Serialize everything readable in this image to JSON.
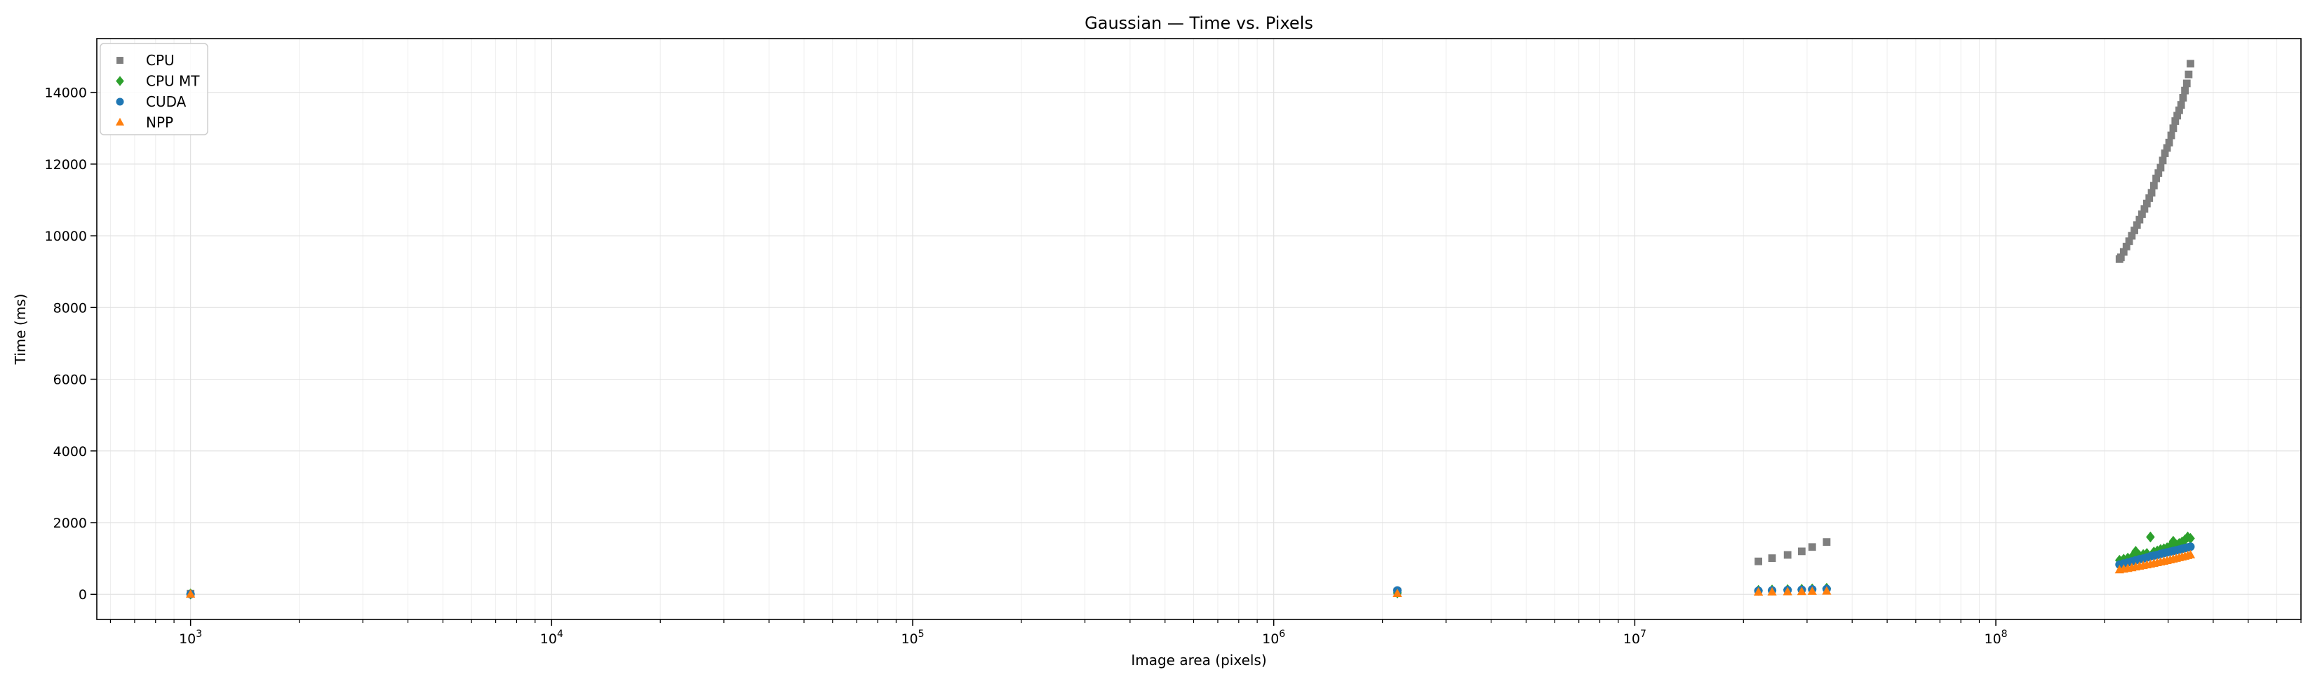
{
  "chart_data": {
    "type": "scatter",
    "title": "Gaussian — Time vs. Pixels",
    "xlabel": "Image area (pixels)",
    "ylabel": "Time (ms)",
    "xscale": "log",
    "xlim": [
      550,
      700000000
    ],
    "ylim": [
      -700,
      15500
    ],
    "grid": true,
    "legend_position": "top-left",
    "x_ticks_major": [
      {
        "value": 1000,
        "base": "10",
        "exp": "3"
      },
      {
        "value": 10000,
        "base": "10",
        "exp": "4"
      },
      {
        "value": 100000,
        "base": "10",
        "exp": "5"
      },
      {
        "value": 1000000,
        "base": "10",
        "exp": "6"
      },
      {
        "value": 10000000,
        "base": "10",
        "exp": "7"
      },
      {
        "value": 100000000,
        "base": "10",
        "exp": "8"
      }
    ],
    "y_ticks": [
      {
        "value": 0,
        "label": "0"
      },
      {
        "value": 2000,
        "label": "2000"
      },
      {
        "value": 4000,
        "label": "4000"
      },
      {
        "value": 6000,
        "label": "6000"
      },
      {
        "value": 8000,
        "label": "8000"
      },
      {
        "value": 10000,
        "label": "10000"
      },
      {
        "value": 12000,
        "label": "12000"
      },
      {
        "value": 14000,
        "label": "14000"
      }
    ],
    "series": [
      {
        "name": "CPU",
        "marker": "square",
        "color": "#7f7f7f",
        "x": [
          1000,
          2200000,
          22000000,
          24000000,
          26500000,
          29000000,
          31000000,
          34000000,
          220000000,
          222000000,
          226000000,
          230000000,
          234000000,
          238000000,
          242000000,
          246000000,
          250000000,
          254000000,
          258000000,
          262000000,
          266000000,
          270000000,
          274000000,
          278000000,
          282000000,
          286000000,
          290000000,
          294000000,
          298000000,
          302000000,
          306000000,
          310000000,
          314000000,
          318000000,
          322000000,
          326000000,
          330000000,
          334000000,
          338000000,
          342000000,
          346000000
        ],
        "y": [
          20,
          80,
          920,
          1010,
          1100,
          1200,
          1320,
          1460,
          9350,
          9400,
          9550,
          9700,
          9850,
          10000,
          10150,
          10300,
          10450,
          10600,
          10750,
          10900,
          11050,
          11200,
          11400,
          11600,
          11750,
          11900,
          12100,
          12300,
          12450,
          12600,
          12800,
          13000,
          13200,
          13350,
          13500,
          13650,
          13850,
          14050,
          14250,
          14500,
          14800
        ]
      },
      {
        "name": "CPU MT",
        "marker": "diamond",
        "color": "#2ca02c",
        "x": [
          1000,
          2200000,
          22000000,
          24000000,
          26500000,
          29000000,
          31000000,
          34000000,
          220000000,
          226000000,
          232000000,
          238000000,
          244000000,
          250000000,
          256000000,
          262000000,
          268000000,
          274000000,
          280000000,
          286000000,
          292000000,
          298000000,
          304000000,
          310000000,
          316000000,
          322000000,
          328000000,
          334000000,
          340000000,
          346000000
        ],
        "y": [
          10,
          40,
          110,
          120,
          130,
          140,
          150,
          170,
          950,
          980,
          1010,
          1040,
          1200,
          1080,
          1110,
          1140,
          1600,
          1180,
          1210,
          1250,
          1270,
          1300,
          1340,
          1480,
          1380,
          1420,
          1460,
          1520,
          1600,
          1560
        ]
      },
      {
        "name": "CUDA",
        "marker": "circle",
        "color": "#1f77b4",
        "x": [
          1000,
          2200000,
          22000000,
          24000000,
          26500000,
          29000000,
          31000000,
          34000000,
          220000000,
          226000000,
          232000000,
          238000000,
          244000000,
          250000000,
          256000000,
          262000000,
          268000000,
          274000000,
          280000000,
          286000000,
          292000000,
          298000000,
          304000000,
          310000000,
          316000000,
          322000000,
          328000000,
          334000000,
          340000000,
          346000000
        ],
        "y": [
          5,
          110,
          100,
          110,
          120,
          130,
          140,
          150,
          830,
          860,
          890,
          920,
          950,
          980,
          1000,
          1030,
          1060,
          1080,
          1100,
          1130,
          1150,
          1170,
          1190,
          1210,
          1230,
          1250,
          1270,
          1290,
          1310,
          1330
        ]
      },
      {
        "name": "NPP",
        "marker": "triangle",
        "color": "#ff7f0e",
        "x": [
          1000,
          2200000,
          22000000,
          24000000,
          26500000,
          29000000,
          31000000,
          34000000,
          220000000,
          226000000,
          232000000,
          238000000,
          244000000,
          250000000,
          256000000,
          262000000,
          268000000,
          274000000,
          280000000,
          286000000,
          292000000,
          298000000,
          304000000,
          310000000,
          316000000,
          322000000,
          328000000,
          334000000,
          340000000,
          346000000
        ],
        "y": [
          2,
          20,
          60,
          65,
          70,
          75,
          80,
          85,
          680,
          700,
          720,
          740,
          760,
          780,
          800,
          820,
          840,
          860,
          880,
          900,
          920,
          940,
          960,
          980,
          1000,
          1020,
          1040,
          1060,
          1080,
          1100
        ]
      }
    ]
  }
}
